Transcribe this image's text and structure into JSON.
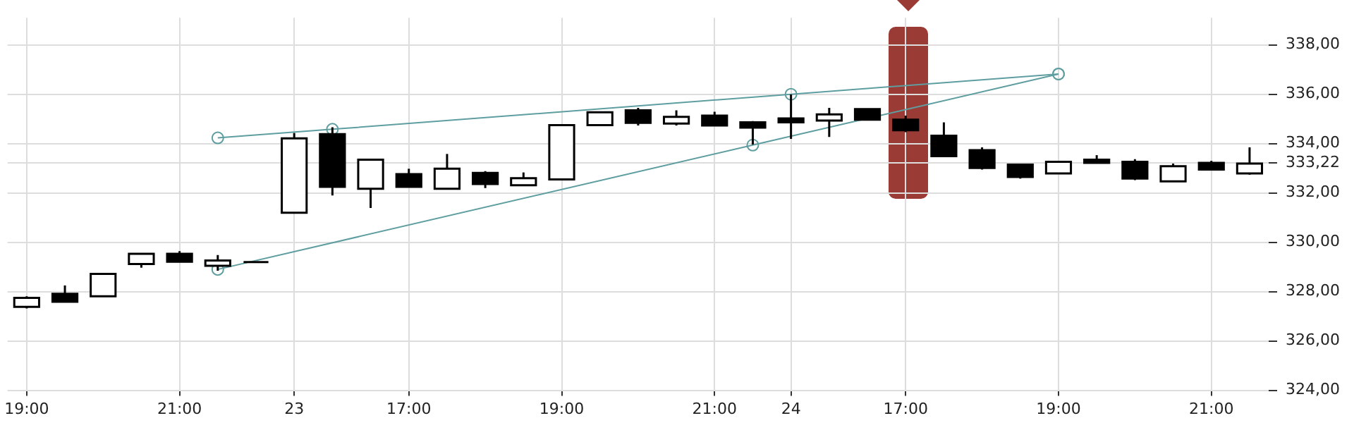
{
  "chart_data": {
    "type": "candlestick",
    "categories": [
      "19:00",
      null,
      null,
      null,
      "21:00",
      null,
      null,
      "23",
      null,
      null,
      "17:00",
      null,
      null,
      null,
      "19:00",
      null,
      null,
      null,
      "21:00",
      null,
      "24",
      null,
      null,
      "17:00",
      null,
      null,
      null,
      "19:00",
      null,
      null,
      null,
      "21:00",
      null
    ],
    "ohlc": [
      [
        327.38,
        327.81,
        327.32,
        327.75
      ],
      [
        327.91,
        328.25,
        327.59,
        327.59
      ],
      [
        327.81,
        328.72,
        327.81,
        328.72
      ],
      [
        329.12,
        329.53,
        328.97,
        329.53
      ],
      [
        329.53,
        329.64,
        329.21,
        329.21
      ],
      [
        329.05,
        329.48,
        328.85,
        329.26
      ],
      [
        329.2,
        329.2,
        329.2,
        329.2
      ],
      [
        331.2,
        334.43,
        331.2,
        334.21
      ],
      [
        334.38,
        334.66,
        331.9,
        332.25
      ],
      [
        332.17,
        333.35,
        331.39,
        333.35
      ],
      [
        332.76,
        332.98,
        332.25,
        332.25
      ],
      [
        332.17,
        333.58,
        332.17,
        332.98
      ],
      [
        332.81,
        332.88,
        332.2,
        332.36
      ],
      [
        332.31,
        332.83,
        332.31,
        332.6
      ],
      [
        332.55,
        334.75,
        332.55,
        334.75
      ],
      [
        334.75,
        335.27,
        334.75,
        335.27
      ],
      [
        335.35,
        335.45,
        334.73,
        334.84
      ],
      [
        334.81,
        335.35,
        334.73,
        335.08
      ],
      [
        335.13,
        335.29,
        334.73,
        334.73
      ],
      [
        334.86,
        334.91,
        333.96,
        334.65
      ],
      [
        335.02,
        335.99,
        334.19,
        334.86
      ],
      [
        334.93,
        335.45,
        334.27,
        335.18
      ],
      [
        335.4,
        335.4,
        334.97,
        334.97
      ],
      [
        334.97,
        335.13,
        334.46,
        334.54
      ],
      [
        334.32,
        334.86,
        333.49,
        333.49
      ],
      [
        333.73,
        333.85,
        332.95,
        333.01
      ],
      [
        333.15,
        333.15,
        332.58,
        332.65
      ],
      [
        332.79,
        333.26,
        332.79,
        333.26
      ],
      [
        333.35,
        333.53,
        333.22,
        333.22
      ],
      [
        333.26,
        333.37,
        332.52,
        332.58
      ],
      [
        332.47,
        333.19,
        332.47,
        333.08
      ],
      [
        333.22,
        333.3,
        332.95,
        332.95
      ],
      [
        332.79,
        333.85,
        332.74,
        333.19
      ]
    ],
    "ylim": [
      324,
      339.1
    ],
    "yticks": [
      {
        "value": 324,
        "label": "324,00"
      },
      {
        "value": 326,
        "label": "326,00"
      },
      {
        "value": 328,
        "label": "328,00"
      },
      {
        "value": 330,
        "label": "330,00"
      },
      {
        "value": 332,
        "label": "332,00"
      },
      {
        "value": 333.22,
        "label": "333,22"
      },
      {
        "value": 334,
        "label": "334,00"
      },
      {
        "value": 336,
        "label": "336,00"
      },
      {
        "value": 338,
        "label": "338,00"
      }
    ],
    "grid": true,
    "marker": "circle",
    "series": [
      {
        "type": "line",
        "color": "#5f9ea0",
        "values": [
          null,
          null,
          null,
          null,
          null,
          334.23,
          null,
          null,
          334.58,
          null,
          null,
          null,
          null,
          null,
          null,
          null,
          null,
          null,
          null,
          null,
          336.0,
          null,
          null,
          null,
          null,
          null,
          null,
          336.82,
          null,
          null,
          null,
          null,
          null
        ]
      },
      {
        "type": "line",
        "color": "#5f9ea0",
        "values": [
          null,
          null,
          null,
          null,
          null,
          328.9,
          null,
          null,
          null,
          null,
          null,
          null,
          null,
          null,
          null,
          null,
          null,
          null,
          null,
          333.94,
          null,
          null,
          null,
          null,
          null,
          null,
          null,
          336.82,
          null,
          null,
          null,
          null,
          null
        ]
      }
    ]
  }
}
